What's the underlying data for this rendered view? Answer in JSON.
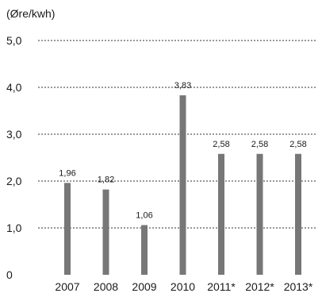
{
  "chart_data": {
    "type": "bar",
    "unit_label": "(Øre/kwh)",
    "categories": [
      "2007",
      "2008",
      "2009",
      "2010",
      "2011*",
      "2012*",
      "2013*"
    ],
    "values": [
      1.96,
      1.82,
      1.06,
      3.83,
      2.58,
      2.58,
      2.58
    ],
    "value_labels": [
      "1,96",
      "1,82",
      "1,06",
      "3,83",
      "2,58",
      "2,58",
      "2,58"
    ],
    "y_ticks": [
      {
        "value": 0,
        "label": "0"
      },
      {
        "value": 1,
        "label": "1,0"
      },
      {
        "value": 2,
        "label": "2,0"
      },
      {
        "value": 3,
        "label": "3,0"
      },
      {
        "value": 4,
        "label": "4,0"
      },
      {
        "value": 5,
        "label": "5,0"
      }
    ],
    "ylim": [
      0,
      5
    ],
    "grid": true,
    "grid_style": "dashed",
    "bar_color": "#777777",
    "grid_color": "#333333"
  }
}
